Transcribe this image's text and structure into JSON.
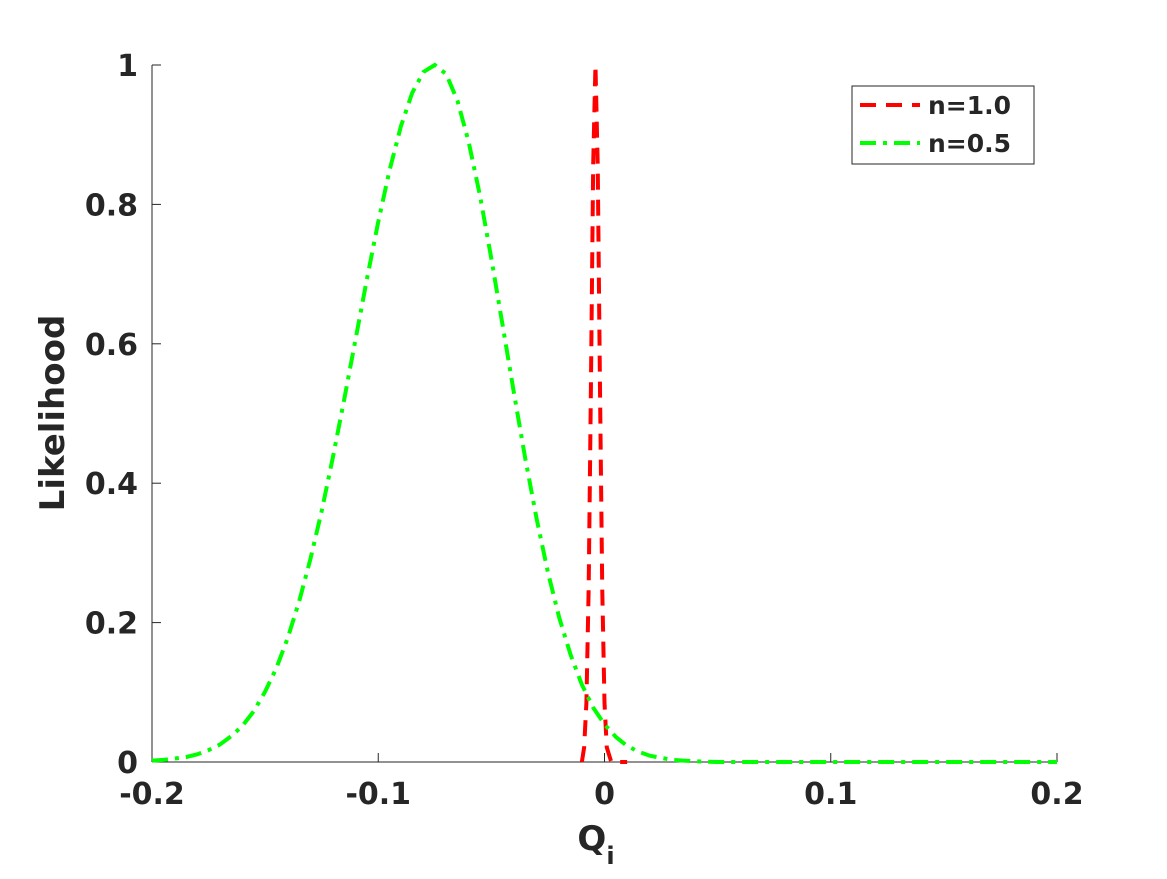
{
  "chart_data": {
    "type": "line",
    "xlabel": "Q",
    "xlabel_subscript": "i",
    "ylabel": "Likelihood",
    "xlim": [
      -0.2,
      0.2
    ],
    "xticks": [
      -0.2,
      -0.1,
      0,
      0.1,
      0.2
    ],
    "ylim": [
      0,
      1
    ],
    "yticks": [
      0,
      0.2,
      0.4,
      0.6,
      0.8,
      1
    ],
    "grid": false,
    "legend": "upper right",
    "series": [
      {
        "name": "n=1.0",
        "color": "#ff0000",
        "style": "dashed",
        "x": [
          -0.01,
          -0.009,
          -0.008,
          -0.007,
          -0.006,
          -0.005,
          -0.004,
          -0.003,
          -0.002,
          -0.001,
          0,
          0.001,
          0.003,
          0.01
        ],
        "values": [
          0,
          0.021,
          0.085,
          0.249,
          0.539,
          0.857,
          1,
          0.857,
          0.539,
          0.249,
          0.085,
          0.021,
          0,
          0
        ]
      },
      {
        "name": "n=0.5",
        "color": "#00ff00",
        "style": "dashdot",
        "x": [
          -0.2,
          -0.195,
          -0.19,
          -0.185,
          -0.18,
          -0.175,
          -0.17,
          -0.165,
          -0.16,
          -0.155,
          -0.15,
          -0.145,
          -0.14,
          -0.135,
          -0.13,
          -0.125,
          -0.12,
          -0.115,
          -0.11,
          -0.105,
          -0.1,
          -0.095,
          -0.09,
          -0.085,
          -0.08,
          -0.075,
          -0.07,
          -0.065,
          -0.06,
          -0.055,
          -0.05,
          -0.045,
          -0.04,
          -0.035,
          -0.03,
          -0.025,
          -0.02,
          -0.015,
          -0.01,
          -0.005,
          0,
          0.005,
          0.01,
          0.015,
          0.02,
          0.025,
          0.03,
          0.035,
          0.04,
          0.05,
          0.2
        ],
        "values": [
          0.002,
          0.003,
          0.005,
          0.007,
          0.011,
          0.017,
          0.025,
          0.037,
          0.052,
          0.073,
          0.101,
          0.135,
          0.178,
          0.23,
          0.291,
          0.36,
          0.438,
          0.521,
          0.607,
          0.693,
          0.775,
          0.849,
          0.912,
          0.96,
          0.99,
          1,
          0.987,
          0.949,
          0.889,
          0.812,
          0.722,
          0.626,
          0.529,
          0.435,
          0.349,
          0.272,
          0.207,
          0.154,
          0.111,
          0.078,
          0.054,
          0.036,
          0.023,
          0.015,
          0.009,
          0.006,
          0.003,
          0.002,
          0.001,
          0,
          0
        ]
      }
    ]
  }
}
